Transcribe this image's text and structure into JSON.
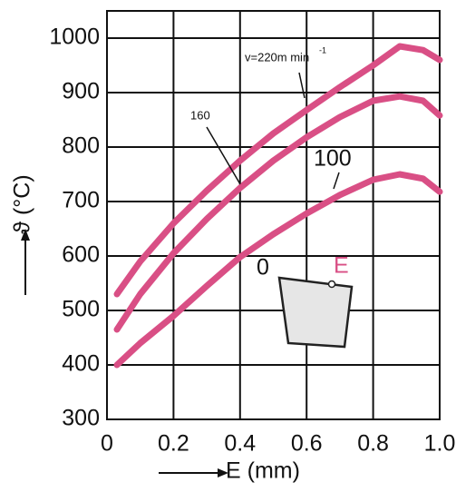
{
  "chart_data": {
    "type": "line",
    "x": [
      0.03,
      0.1,
      0.2,
      0.3,
      0.4,
      0.5,
      0.6,
      0.7,
      0.8,
      0.88,
      0.95,
      1.0
    ],
    "series": [
      {
        "name": "v=220m min",
        "color": "#d94f85",
        "values": [
          530,
          590,
          660,
          720,
          775,
          825,
          868,
          910,
          950,
          985,
          978,
          960
        ]
      },
      {
        "name": "160",
        "color": "#d94f85",
        "values": [
          465,
          530,
          605,
          668,
          725,
          775,
          818,
          855,
          885,
          893,
          885,
          858
        ]
      },
      {
        "name": "100",
        "color": "#d94f85",
        "values": [
          400,
          440,
          490,
          545,
          598,
          640,
          678,
          712,
          740,
          750,
          742,
          718
        ]
      }
    ],
    "xlim": [
      0,
      1
    ],
    "ylim": [
      300,
      1050
    ],
    "xticks": [
      0,
      0.2,
      0.4,
      0.6,
      0.8,
      {
        "value": 1,
        "label": "1.0"
      }
    ],
    "yticks": [
      300,
      400,
      500,
      600,
      700,
      800,
      900,
      1000
    ],
    "grid": true,
    "xlabel": "E (mm)",
    "ylabel": "ϑ (°C)",
    "annotations": [
      "-1",
      "0",
      "E"
    ]
  }
}
